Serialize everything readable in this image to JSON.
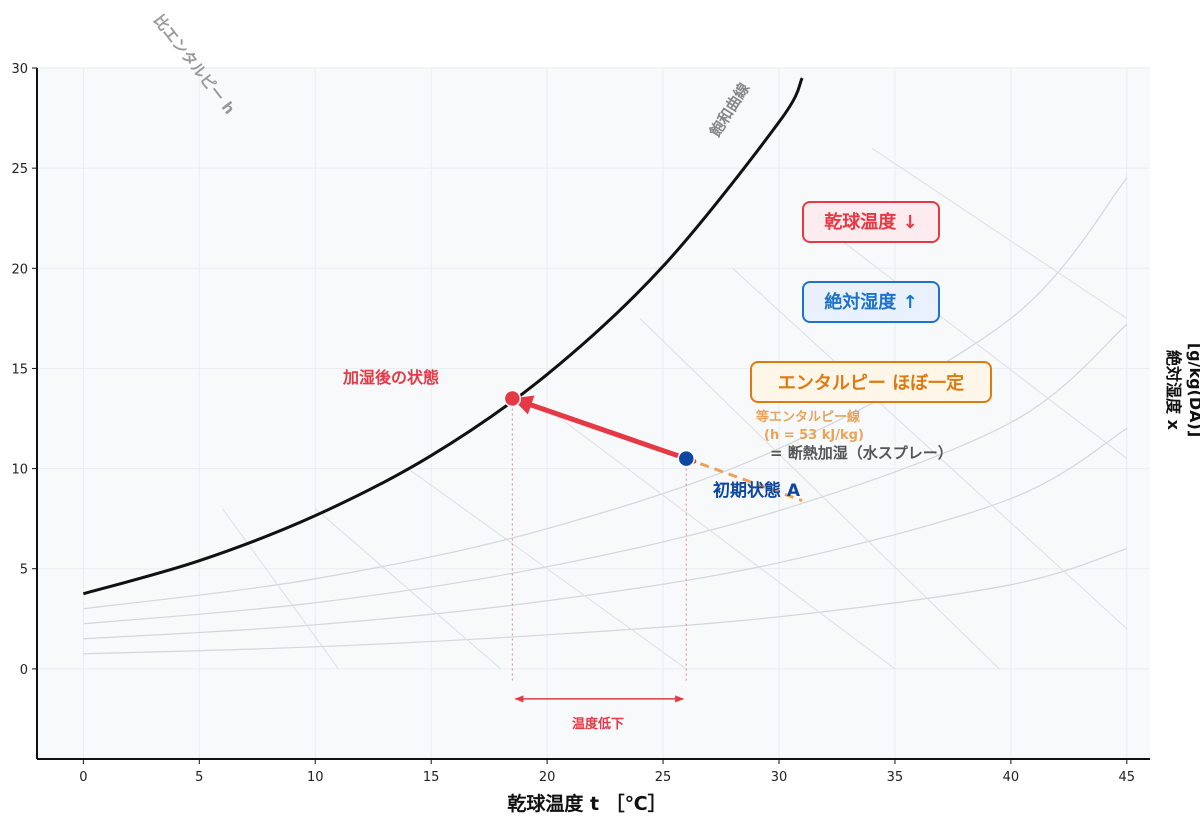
{
  "chart_data": {
    "type": "line",
    "title": "",
    "xlabel": "乾球温度 t ［℃］",
    "ylabel_line1": "絶対湿度 x",
    "ylabel_line2": "[g/kg(DA)]",
    "xlim": [
      -2,
      46
    ],
    "ylim": [
      -4.5,
      30
    ],
    "xticks": [
      0,
      5,
      10,
      15,
      20,
      25,
      30,
      35,
      40,
      45
    ],
    "yticks": [
      0,
      5,
      10,
      15,
      20,
      25,
      30
    ],
    "grid": true,
    "saturation_curve": {
      "label": "飽和曲線",
      "x": [
        0,
        5,
        10,
        15,
        20,
        25,
        30,
        31
      ],
      "y": [
        3.75,
        5.4,
        7.65,
        10.65,
        14.7,
        20.1,
        27.3,
        29.5
      ]
    },
    "rh_curves": [
      {
        "x": [
          0,
          10,
          20,
          30,
          40,
          45
        ],
        "y": [
          3.0,
          4.5,
          7.0,
          11.0,
          17.5,
          24.5
        ]
      },
      {
        "x": [
          0,
          10,
          20,
          30,
          40,
          45
        ],
        "y": [
          2.25,
          3.3,
          5.1,
          7.9,
          12.3,
          17.2
        ]
      },
      {
        "x": [
          0,
          10,
          20,
          30,
          40,
          45
        ],
        "y": [
          1.5,
          2.2,
          3.4,
          5.3,
          8.5,
          12.0
        ]
      },
      {
        "x": [
          0,
          10,
          20,
          30,
          40,
          45
        ],
        "y": [
          0.75,
          1.1,
          1.7,
          2.6,
          4.2,
          6.0
        ]
      }
    ],
    "enthalpy_lines": [
      {
        "x": [
          6,
          11
        ],
        "y": [
          8,
          0
        ]
      },
      {
        "x": [
          10,
          18
        ],
        "y": [
          8,
          0
        ]
      },
      {
        "x": [
          14,
          26
        ],
        "y": [
          10,
          0
        ]
      },
      {
        "x": [
          20,
          35
        ],
        "y": [
          13,
          0
        ]
      },
      {
        "x": [
          24,
          39.5
        ],
        "y": [
          17.5,
          0
        ]
      },
      {
        "x": [
          28,
          45
        ],
        "y": [
          20,
          2
        ]
      },
      {
        "x": [
          32,
          45
        ],
        "y": [
          22,
          10.5
        ]
      },
      {
        "x": [
          34,
          45
        ],
        "y": [
          26,
          17.5
        ]
      }
    ],
    "enthalpy_axis_label": "比エンタルピー h",
    "points": [
      {
        "name": "initial",
        "label": "初期状態 A",
        "x": 26,
        "y": 10.5,
        "color": "#0d47a1"
      },
      {
        "name": "humidified",
        "label": "加湿後の状態",
        "x": 18.5,
        "y": 13.5,
        "color": "#e53945"
      }
    ],
    "isenthalpic_line": {
      "x": [
        26,
        31
      ],
      "y": [
        10.5,
        8.4
      ],
      "color": "#e8a45a"
    },
    "process_arrow": {
      "from": [
        26,
        10.5
      ],
      "to": [
        18.5,
        13.5
      ],
      "color": "#e53945"
    },
    "temperature_drop": {
      "from": 18.5,
      "to": 26,
      "label": "温度低下"
    },
    "annotations": {
      "isenthalpic_line1": "等エンタルピー線",
      "isenthalpic_line2": "(h = 53 kJ/kg)",
      "process": "= 断熱加湿（水スプレー）"
    },
    "badges": [
      {
        "text": "乾球温度 ↓",
        "color": "#e53945",
        "bg": "#fdecef"
      },
      {
        "text": "絶対湿度 ↑",
        "color": "#1e73c8",
        "bg": "#e9f2fc"
      },
      {
        "text": "エンタルピー ほぼ一定",
        "color": "#de7a12",
        "bg": "#fef6e8"
      }
    ]
  }
}
